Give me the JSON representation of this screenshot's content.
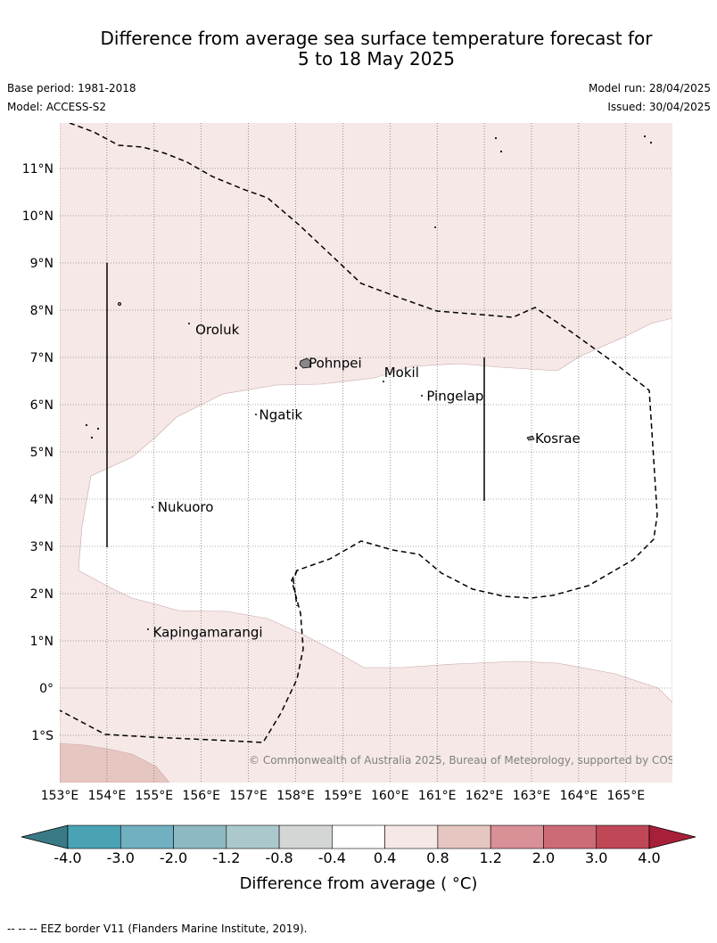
{
  "title": {
    "line1": "Difference from average sea surface temperature forecast for",
    "line2": "5 to 18 May 2025"
  },
  "meta": {
    "base_period": "Base period: 1981-2018",
    "model": "Model: ACCESS-S2",
    "model_run": "Model run: 28/04/2025",
    "issued": "Issued: 30/04/2025"
  },
  "map": {
    "lon_labels": [
      "153°E",
      "154°E",
      "155°E",
      "156°E",
      "157°E",
      "158°E",
      "159°E",
      "160°E",
      "161°E",
      "162°E",
      "163°E",
      "164°E",
      "165°E"
    ],
    "lat_labels": [
      "11°N",
      "10°N",
      "9°N",
      "8°N",
      "7°N",
      "6°N",
      "5°N",
      "4°N",
      "3°N",
      "2°N",
      "1°N",
      "0°",
      "1°S"
    ],
    "places": [
      {
        "name": "Oroluk",
        "lon": 155.8,
        "lat": 7.6
      },
      {
        "name": "Pohnpei",
        "lon": 158.2,
        "lat": 6.9
      },
      {
        "name": "Mokil",
        "lon": 159.8,
        "lat": 6.7
      },
      {
        "name": "Pingelap",
        "lon": 160.7,
        "lat": 6.2
      },
      {
        "name": "Ngatik",
        "lon": 157.15,
        "lat": 5.8
      },
      {
        "name": "Kosrae",
        "lon": 163.0,
        "lat": 5.3
      },
      {
        "name": "Nukuoro",
        "lon": 155.0,
        "lat": 3.85
      },
      {
        "name": "Kapingamarangi",
        "lon": 154.9,
        "lat": 1.2
      }
    ],
    "copyright": "© Commonwealth of Australia 2025, Bureau of Meteorology, supported by COSPPac",
    "colors": {
      "light_pink": "#f5e8e7",
      "pink": "#e6c6c1",
      "white": "#ffffff",
      "grid": "#555555"
    }
  },
  "colorbar": {
    "labels": [
      "-4.0",
      "-3.0",
      "-2.0",
      "-1.2",
      "-0.8",
      "-0.4",
      "0.4",
      "0.8",
      "1.2",
      "2.0",
      "3.0",
      "4.0"
    ],
    "colors": [
      "#3a7a87",
      "#4aa3b5",
      "#70b0c0",
      "#8db9c4",
      "#abc9cc",
      "#d3d6d5",
      "#ffffff",
      "#f5e8e7",
      "#e6c6c1",
      "#d99097",
      "#cc6b75",
      "#c04756",
      "#a81f3a"
    ],
    "title": "Difference from average ( °C)"
  },
  "footnote": "--  --  -- EEZ border V11 (Flanders Marine Institute, 2019)."
}
